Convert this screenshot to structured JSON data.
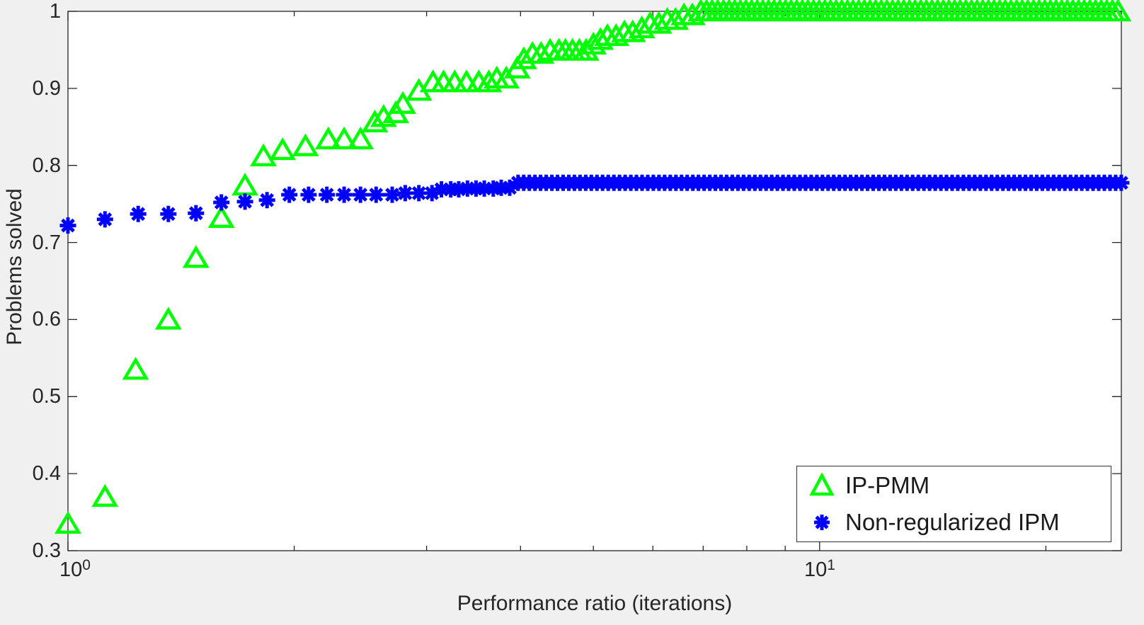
{
  "figure": {
    "background_color": "#f0f0f0",
    "plot_background_color": "#ffffff",
    "axis_color": "#262626",
    "text_color": "#262626"
  },
  "axis": {
    "xlabel": "Performance ratio (iterations)",
    "ylabel": "Problems solved",
    "y_tick_labels": [
      "1",
      "0.9",
      "0.8",
      "0.7",
      "0.6",
      "0.5",
      "0.4",
      "0.3"
    ],
    "x_tick_base": "10",
    "x_tick_exponents": [
      "0",
      "1"
    ]
  },
  "legend": {
    "entries": [
      {
        "label": "IP-PMM",
        "marker": "triangle",
        "color": "#00ff00"
      },
      {
        "label": "Non-regularized IPM",
        "marker": "asterisk",
        "color": "#0000ff"
      }
    ]
  },
  "chart_data": {
    "type": "scatter",
    "title": "",
    "xlabel": "Performance ratio (iterations)",
    "ylabel": "Problems solved",
    "x_scale": "log10",
    "xlim": [
      1,
      25.2
    ],
    "ylim": [
      0.3,
      1.0
    ],
    "x_ticks_major": [
      1,
      10
    ],
    "x_ticks_minor": [
      2,
      3,
      4,
      5,
      6,
      7,
      8,
      9,
      20
    ],
    "y_ticks": [
      0.3,
      0.4,
      0.5,
      0.6,
      0.7,
      0.8,
      0.9,
      1.0
    ],
    "grid": false,
    "legend_position": "bottom-right",
    "series": [
      {
        "name": "IP-PMM",
        "marker": "triangle",
        "color": "#00ff00",
        "points": [
          [
            1.0,
            0.335
          ],
          [
            1.12,
            0.37
          ],
          [
            1.23,
            0.535
          ],
          [
            1.36,
            0.6
          ],
          [
            1.48,
            0.68
          ],
          [
            1.6,
            0.732
          ],
          [
            1.72,
            0.774
          ],
          [
            1.82,
            0.812
          ],
          [
            1.93,
            0.82
          ],
          [
            2.07,
            0.825
          ],
          [
            2.22,
            0.834
          ],
          [
            2.33,
            0.834
          ],
          [
            2.45,
            0.834
          ],
          [
            2.56,
            0.856
          ],
          [
            2.63,
            0.863
          ],
          [
            2.73,
            0.868
          ],
          [
            2.79,
            0.88
          ],
          [
            2.93,
            0.897
          ],
          [
            3.06,
            0.908
          ],
          [
            3.16,
            0.908
          ],
          [
            3.27,
            0.908
          ],
          [
            3.39,
            0.908
          ],
          [
            3.52,
            0.908
          ],
          [
            3.63,
            0.908
          ],
          [
            3.72,
            0.913
          ],
          [
            3.83,
            0.913
          ],
          [
            3.96,
            0.926
          ],
          [
            4.04,
            0.938
          ],
          [
            4.15,
            0.945
          ],
          [
            4.26,
            0.945
          ],
          [
            4.38,
            0.949
          ],
          [
            4.5,
            0.949
          ],
          [
            4.59,
            0.949
          ],
          [
            4.69,
            0.949
          ],
          [
            4.79,
            0.949
          ],
          [
            4.89,
            0.949
          ],
          [
            5.0,
            0.957
          ],
          [
            5.11,
            0.963
          ],
          [
            5.22,
            0.968
          ],
          [
            5.36,
            0.968
          ],
          [
            5.5,
            0.973
          ],
          [
            5.64,
            0.973
          ],
          [
            5.8,
            0.978
          ],
          [
            5.95,
            0.984
          ],
          [
            6.11,
            0.984
          ],
          [
            6.27,
            0.989
          ],
          [
            6.43,
            0.989
          ],
          [
            6.6,
            0.995
          ],
          [
            6.77,
            0.995
          ]
        ],
        "plateau": {
          "from": 6.95,
          "to": 25.2,
          "value": 1.0
        }
      },
      {
        "name": "Non-regularized IPM",
        "marker": "asterisk",
        "color": "#0000ff",
        "points": [
          [
            1.0,
            0.722
          ],
          [
            1.12,
            0.73
          ],
          [
            1.24,
            0.737
          ],
          [
            1.36,
            0.737
          ],
          [
            1.48,
            0.738
          ],
          [
            1.6,
            0.752
          ],
          [
            1.72,
            0.753
          ],
          [
            1.84,
            0.755
          ],
          [
            1.97,
            0.762
          ],
          [
            2.09,
            0.762
          ],
          [
            2.21,
            0.762
          ],
          [
            2.33,
            0.762
          ],
          [
            2.45,
            0.762
          ],
          [
            2.57,
            0.762
          ],
          [
            2.7,
            0.762
          ],
          [
            2.81,
            0.764
          ],
          [
            2.93,
            0.764
          ],
          [
            3.05,
            0.764
          ],
          [
            3.14,
            0.769
          ],
          [
            3.23,
            0.769
          ],
          [
            3.31,
            0.769
          ],
          [
            3.4,
            0.77
          ],
          [
            3.49,
            0.77
          ],
          [
            3.58,
            0.77
          ],
          [
            3.68,
            0.77
          ],
          [
            3.77,
            0.771
          ],
          [
            3.87,
            0.771
          ]
        ],
        "plateau": {
          "from": 3.97,
          "to": 25.5,
          "value": 0.7775
        }
      }
    ]
  }
}
